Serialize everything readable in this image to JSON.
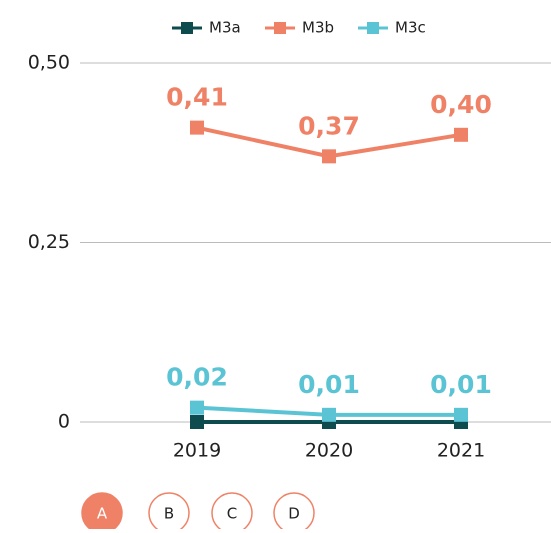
{
  "chart_data": {
    "type": "line",
    "categories": [
      "2019",
      "2020",
      "2021"
    ],
    "series": [
      {
        "name": "M3a",
        "color": "#0d4b4f",
        "values": [
          0,
          0,
          0
        ]
      },
      {
        "name": "M3b",
        "color": "#ef8266",
        "values": [
          0.41,
          0.37,
          0.4
        ],
        "value_labels": [
          "0,41",
          "0,37",
          "0,40"
        ]
      },
      {
        "name": "M3c",
        "color": "#5bc4d4",
        "values": [
          0.02,
          0.01,
          0.01
        ],
        "value_labels": [
          "0,02",
          "0,01",
          "0,01"
        ]
      }
    ],
    "ylim": [
      0,
      0.5
    ],
    "yticks": [
      {
        "value": 0,
        "label": "0"
      },
      {
        "value": 0.25,
        "label": "0,25"
      },
      {
        "value": 0.5,
        "label": "0,50"
      }
    ],
    "grid": true,
    "legend": "top"
  },
  "buttons": [
    "A",
    "B",
    "C",
    "D"
  ]
}
